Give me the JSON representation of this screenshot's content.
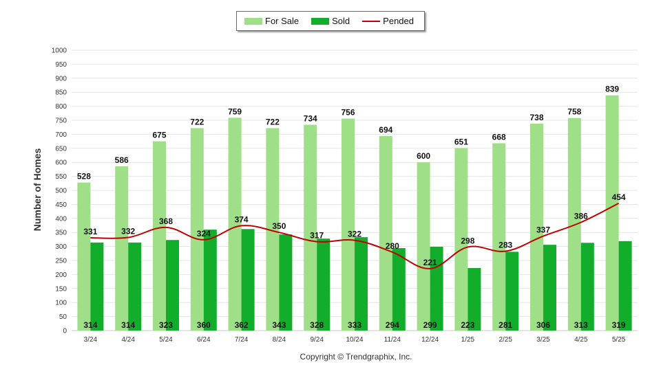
{
  "chart_data": {
    "type": "bar",
    "categories": [
      "3/24",
      "4/24",
      "5/24",
      "6/24",
      "7/24",
      "8/24",
      "9/24",
      "10/24",
      "11/24",
      "12/24",
      "1/25",
      "2/25",
      "3/25",
      "4/25",
      "5/25"
    ],
    "series": [
      {
        "name": "For Sale",
        "type": "bar",
        "color": "#9fdf88",
        "values": [
          528,
          586,
          675,
          722,
          759,
          722,
          734,
          756,
          694,
          600,
          651,
          668,
          738,
          758,
          839
        ]
      },
      {
        "name": "Sold",
        "type": "bar",
        "color": "#12ad2b",
        "values": [
          314,
          314,
          323,
          360,
          362,
          343,
          328,
          333,
          294,
          299,
          223,
          281,
          306,
          313,
          319
        ]
      },
      {
        "name": "Pended",
        "type": "line",
        "color": "#c00000",
        "values": [
          331,
          332,
          368,
          324,
          374,
          350,
          317,
          322,
          280,
          221,
          298,
          283,
          337,
          386,
          454
        ]
      }
    ],
    "ylabel": "Number of Homes",
    "xlabel": "",
    "ylim": [
      0,
      1000
    ],
    "yticks": [
      0,
      50,
      100,
      150,
      200,
      250,
      300,
      350,
      400,
      450,
      500,
      550,
      600,
      650,
      700,
      750,
      800,
      850,
      900,
      950,
      1000
    ],
    "grid": true,
    "legend_position": "top-center"
  },
  "legend": {
    "for_sale": "For Sale",
    "sold": "Sold",
    "pended": "Pended"
  },
  "footer": {
    "copyright": "Copyright © Trendgraphix, Inc."
  }
}
